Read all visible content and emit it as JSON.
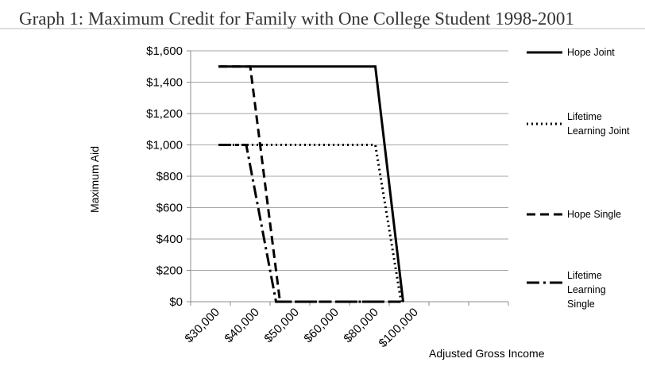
{
  "chart_data": {
    "type": "line",
    "title": "Graph 1: Maximum Credit for Family with One College Student 1998-2001",
    "xlabel": "Adjusted Gross Income",
    "ylabel": "Maximum  Aid",
    "categories": [
      "$30,000",
      "$40,000",
      "$50,000",
      "$60,000",
      "$80,000",
      "$100,000"
    ],
    "y_ticks": [
      "$0",
      "$200",
      "$400",
      "$600",
      "$800",
      "$1,000",
      "$1,200",
      "$1,400",
      "$1,600"
    ],
    "ylim": [
      0,
      1600
    ],
    "x_range": [
      0,
      8
    ],
    "grid": true,
    "legend_position": "right",
    "series": [
      {
        "name": "Hope Joint",
        "style": "solid",
        "color": "#000000",
        "points": [
          [
            0.7,
            1500
          ],
          [
            4.65,
            1500
          ],
          [
            5.35,
            0
          ]
        ]
      },
      {
        "name": "Lifetime Learning Joint",
        "style": "dotted",
        "color": "#000000",
        "points": [
          [
            0.7,
            1000
          ],
          [
            4.65,
            1000
          ],
          [
            5.3,
            0
          ]
        ]
      },
      {
        "name": "Hope Single",
        "style": "dashed",
        "color": "#000000",
        "points": [
          [
            0.7,
            1500
          ],
          [
            1.5,
            1500
          ],
          [
            2.25,
            0
          ],
          [
            5.35,
            0
          ]
        ]
      },
      {
        "name": "Lifetime Learning Single",
        "style": "dashdot",
        "color": "#000000",
        "points": [
          [
            0.7,
            1000
          ],
          [
            1.4,
            1000
          ],
          [
            2.15,
            0
          ],
          [
            5.35,
            0
          ]
        ]
      }
    ]
  }
}
